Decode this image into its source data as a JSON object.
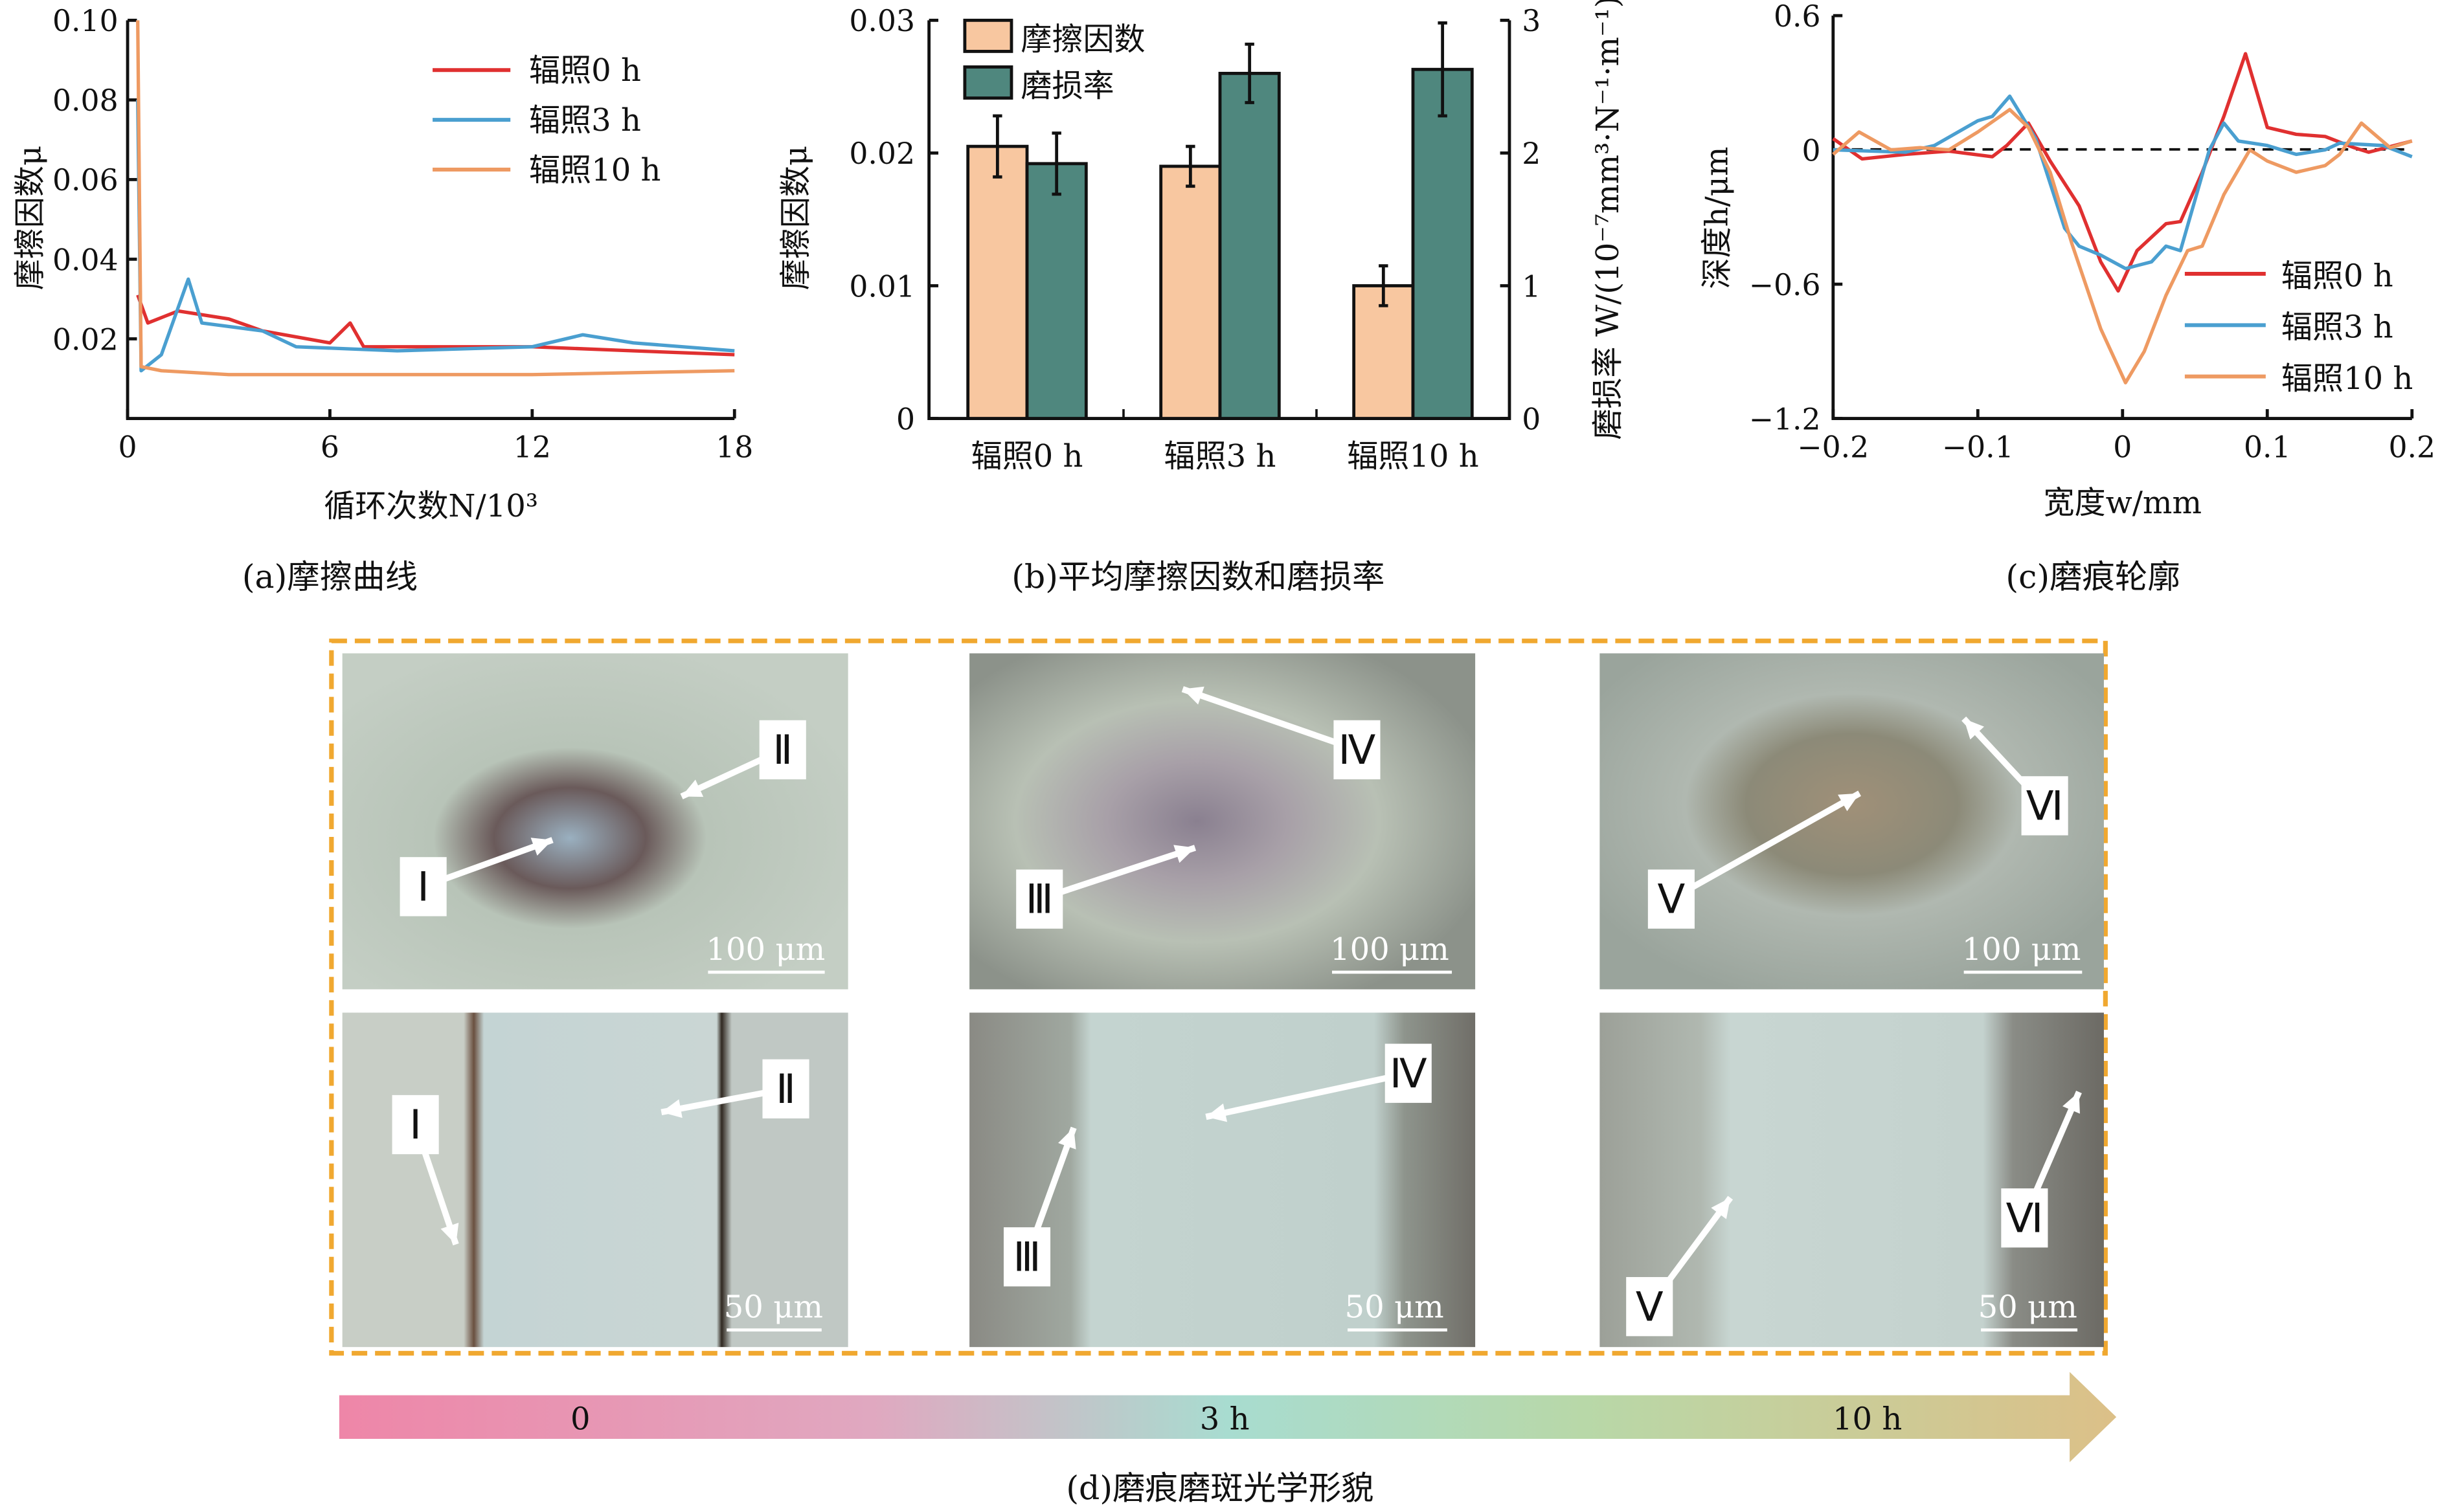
{
  "captions": {
    "a": "(a)摩擦曲线",
    "b": "(b)平均摩擦因数和磨损率",
    "c": "(c)磨痕轮廓",
    "d": "(d)磨痕磨斑光学形貌"
  },
  "colors": {
    "h0": "#e03030",
    "h3": "#4a9fd0",
    "h10": "#ee9a62",
    "bar_friction": "#f8c7a0",
    "bar_wear": "#4f877e",
    "frame": "#f0a830"
  },
  "chart_data": [
    {
      "type": "line",
      "title": "(a)摩擦曲线",
      "xlabel": "循环次数N/10³",
      "ylabel": "摩擦因数μ",
      "xlim": [
        0,
        18
      ],
      "ylim": [
        0,
        0.1
      ],
      "xticks": [
        "0",
        "6",
        "12",
        "18"
      ],
      "yticks": [
        "0.10",
        "0.08",
        "0.06",
        "0.04",
        "0.02"
      ],
      "legend": "top-right",
      "series": [
        {
          "name": "辐照0 h",
          "points": [
            [
              0.3,
              0.031
            ],
            [
              0.6,
              0.024
            ],
            [
              1.5,
              0.027
            ],
            [
              3,
              0.025
            ],
            [
              4,
              0.022
            ],
            [
              6,
              0.019
            ],
            [
              6.6,
              0.024
            ],
            [
              7,
              0.018
            ],
            [
              9,
              0.018
            ],
            [
              12,
              0.018
            ],
            [
              15,
              0.017
            ],
            [
              18,
              0.016
            ]
          ]
        },
        {
          "name": "辐照3 h",
          "points": [
            [
              0.3,
              0.08
            ],
            [
              0.4,
              0.012
            ],
            [
              1,
              0.016
            ],
            [
              1.8,
              0.035
            ],
            [
              2.2,
              0.024
            ],
            [
              4,
              0.022
            ],
            [
              5,
              0.018
            ],
            [
              8,
              0.017
            ],
            [
              12,
              0.018
            ],
            [
              13.5,
              0.021
            ],
            [
              15,
              0.019
            ],
            [
              18,
              0.017
            ]
          ]
        },
        {
          "name": "辐照10 h",
          "points": [
            [
              0.3,
              0.1
            ],
            [
              0.4,
              0.013
            ],
            [
              1,
              0.012
            ],
            [
              3,
              0.011
            ],
            [
              6,
              0.011
            ],
            [
              12,
              0.011
            ],
            [
              18,
              0.012
            ]
          ]
        }
      ]
    },
    {
      "type": "bar",
      "title": "(b)平均摩擦因数和磨损率",
      "categories": [
        "辐照0 h",
        "辐照3 h",
        "辐照10 h"
      ],
      "ylabel": "摩擦因数μ",
      "y2label": "磨损率 W/(10⁻⁷mm³·N⁻¹·m⁻¹)",
      "ylim": [
        0,
        0.03
      ],
      "y2lim": [
        0,
        3
      ],
      "yticks": [
        "0",
        "0.01",
        "0.02",
        "0.03"
      ],
      "y2ticks": [
        "0",
        "1",
        "2",
        "3"
      ],
      "legend": "top-left",
      "series": [
        {
          "name": "摩擦因数",
          "axis": "left",
          "values": [
            0.0205,
            0.019,
            0.01
          ],
          "errors": [
            0.0023,
            0.0015,
            0.0015
          ]
        },
        {
          "name": "磨损率",
          "axis": "right",
          "values": [
            1.92,
            2.6,
            2.63
          ],
          "errors": [
            0.23,
            0.22,
            0.35
          ]
        }
      ]
    },
    {
      "type": "line",
      "title": "(c)磨痕轮廓",
      "xlabel": "宽度w/mm",
      "ylabel": "深度h/μm",
      "xlim": [
        -0.2,
        0.2
      ],
      "ylim": [
        -1.2,
        0.6
      ],
      "xticks": [
        "−0.2",
        "−0.1",
        "0",
        "0.1",
        "0.2"
      ],
      "yticks": [
        "0.6",
        "0",
        "−0.6",
        "−1.2"
      ],
      "legend": "bottom-right",
      "series": [
        {
          "name": "辐照0 h",
          "points": [
            [
              -0.2,
              0.05
            ],
            [
              -0.18,
              -0.04
            ],
            [
              -0.15,
              -0.02
            ],
            [
              -0.13,
              -0.01
            ],
            [
              -0.12,
              -0.005
            ],
            [
              -0.09,
              -0.03
            ],
            [
              -0.08,
              0.02
            ],
            [
              -0.065,
              0.12
            ],
            [
              -0.05,
              -0.05
            ],
            [
              -0.03,
              -0.25
            ],
            [
              -0.015,
              -0.5
            ],
            [
              -0.003,
              -0.63
            ],
            [
              0.01,
              -0.45
            ],
            [
              0.03,
              -0.33
            ],
            [
              0.04,
              -0.32
            ],
            [
              0.055,
              -0.1
            ],
            [
              0.07,
              0.15
            ],
            [
              0.085,
              0.43
            ],
            [
              0.1,
              0.1
            ],
            [
              0.12,
              0.07
            ],
            [
              0.14,
              0.06
            ],
            [
              0.16,
              0.01
            ],
            [
              0.17,
              -0.01
            ],
            [
              0.2,
              0.04
            ]
          ]
        },
        {
          "name": "辐照3 h",
          "points": [
            [
              -0.2,
              0
            ],
            [
              -0.15,
              -0.01
            ],
            [
              -0.13,
              0.02
            ],
            [
              -0.1,
              0.13
            ],
            [
              -0.09,
              0.15
            ],
            [
              -0.078,
              0.24
            ],
            [
              -0.06,
              0.05
            ],
            [
              -0.04,
              -0.35
            ],
            [
              -0.03,
              -0.43
            ],
            [
              -0.015,
              -0.47
            ],
            [
              0.002,
              -0.53
            ],
            [
              0.02,
              -0.5
            ],
            [
              0.03,
              -0.43
            ],
            [
              0.04,
              -0.45
            ],
            [
              0.06,
              0
            ],
            [
              0.07,
              0.12
            ],
            [
              0.08,
              0.04
            ],
            [
              0.1,
              0.02
            ],
            [
              0.12,
              -0.02
            ],
            [
              0.14,
              0.0
            ],
            [
              0.15,
              0.03
            ],
            [
              0.18,
              0.02
            ],
            [
              0.2,
              -0.03
            ]
          ]
        },
        {
          "name": "辐照10 h",
          "points": [
            [
              -0.2,
              -0.02
            ],
            [
              -0.182,
              0.08
            ],
            [
              -0.16,
              0.0
            ],
            [
              -0.14,
              0.01
            ],
            [
              -0.12,
              0.0
            ],
            [
              -0.1,
              0.08
            ],
            [
              -0.078,
              0.18
            ],
            [
              -0.065,
              0.1
            ],
            [
              -0.05,
              -0.1
            ],
            [
              -0.035,
              -0.42
            ],
            [
              -0.015,
              -0.8
            ],
            [
              0.002,
              -1.04
            ],
            [
              0.015,
              -0.9
            ],
            [
              0.03,
              -0.65
            ],
            [
              0.045,
              -0.45
            ],
            [
              0.055,
              -0.43
            ],
            [
              0.07,
              -0.2
            ],
            [
              0.088,
              0.0
            ],
            [
              0.1,
              -0.05
            ],
            [
              0.12,
              -0.1
            ],
            [
              0.14,
              -0.07
            ],
            [
              0.15,
              -0.02
            ],
            [
              0.165,
              0.12
            ],
            [
              0.185,
              0.01
            ],
            [
              0.2,
              0.04
            ]
          ]
        }
      ]
    }
  ],
  "micrographs": {
    "top_scale": "100 μm",
    "bottom_scale": "50 μm",
    "labels": [
      "Ⅰ",
      "Ⅱ",
      "Ⅲ",
      "Ⅳ",
      "Ⅴ",
      "Ⅵ"
    ]
  },
  "timeline": {
    "labels": [
      "0",
      "3 h",
      "10 h"
    ]
  }
}
